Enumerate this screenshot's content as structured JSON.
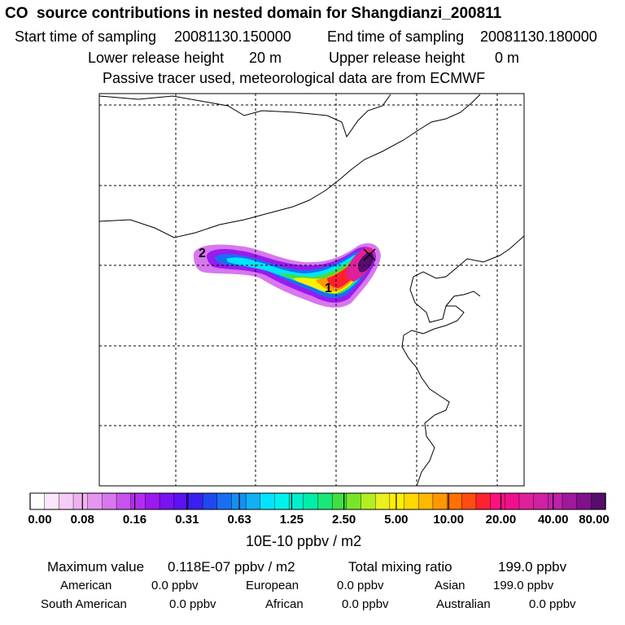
{
  "chart_data": {
    "type": "heatmap",
    "title": "CO  source contributions in nested domain for Shangdianzi_200811",
    "start_label": "Start time of sampling",
    "start_value": "20081130.150000",
    "end_label": "End time of sampling",
    "end_value": "20081130.180000",
    "lower_label": "Lower release height",
    "lower_value": "20 m",
    "upper_label": "Upper release height",
    "upper_value": "0 m",
    "note": "Passive tracer used, meteorological data are from ECMWF",
    "markers": [
      "1",
      "2"
    ],
    "colorbar": {
      "ticks": [
        "0.00",
        "0.08",
        "0.16",
        "0.31",
        "0.63",
        "1.25",
        "2.50",
        "5.00",
        "10.00",
        "20.00",
        "40.00",
        "80.00"
      ],
      "unit": "10E-10 ppbv / m2",
      "colors": [
        "#ffffff",
        "#fbe6fb",
        "#f5ccf5",
        "#efb2f0",
        "#e596ee",
        "#d877ee",
        "#c653ee",
        "#b12ef0",
        "#9a1af0",
        "#7a12f2",
        "#5a12f0",
        "#3a20f0",
        "#2048f0",
        "#1a6ef2",
        "#1490f4",
        "#10b0f4",
        "#00e4ff",
        "#00f2ec",
        "#00f0cc",
        "#00eea8",
        "#18e878",
        "#40e040",
        "#78e628",
        "#b4ee20",
        "#e8f020",
        "#fff000",
        "#ffd800",
        "#ffb800",
        "#ff9800",
        "#ff7000",
        "#ff4c10",
        "#ff2030",
        "#ff1080",
        "#f0108c",
        "#e0209a",
        "#d020a4",
        "#c020a8",
        "#a0189c",
        "#80108c",
        "#580c6c"
      ]
    }
  },
  "footer": {
    "max_label": "Maximum value",
    "max_value": "0.118E-07 ppbv / m2",
    "total_label": "Total mixing ratio",
    "total_value": "199.0 ppbv",
    "regions": [
      {
        "name": "American",
        "value": "0.0 ppbv"
      },
      {
        "name": "European",
        "value": "0.0 ppbv"
      },
      {
        "name": "Asian",
        "value": "199.0 ppbv"
      },
      {
        "name": "South American",
        "value": "0.0 ppbv"
      },
      {
        "name": "African",
        "value": "0.0 ppbv"
      },
      {
        "name": "Australian",
        "value": "0.0 ppbv"
      }
    ]
  }
}
